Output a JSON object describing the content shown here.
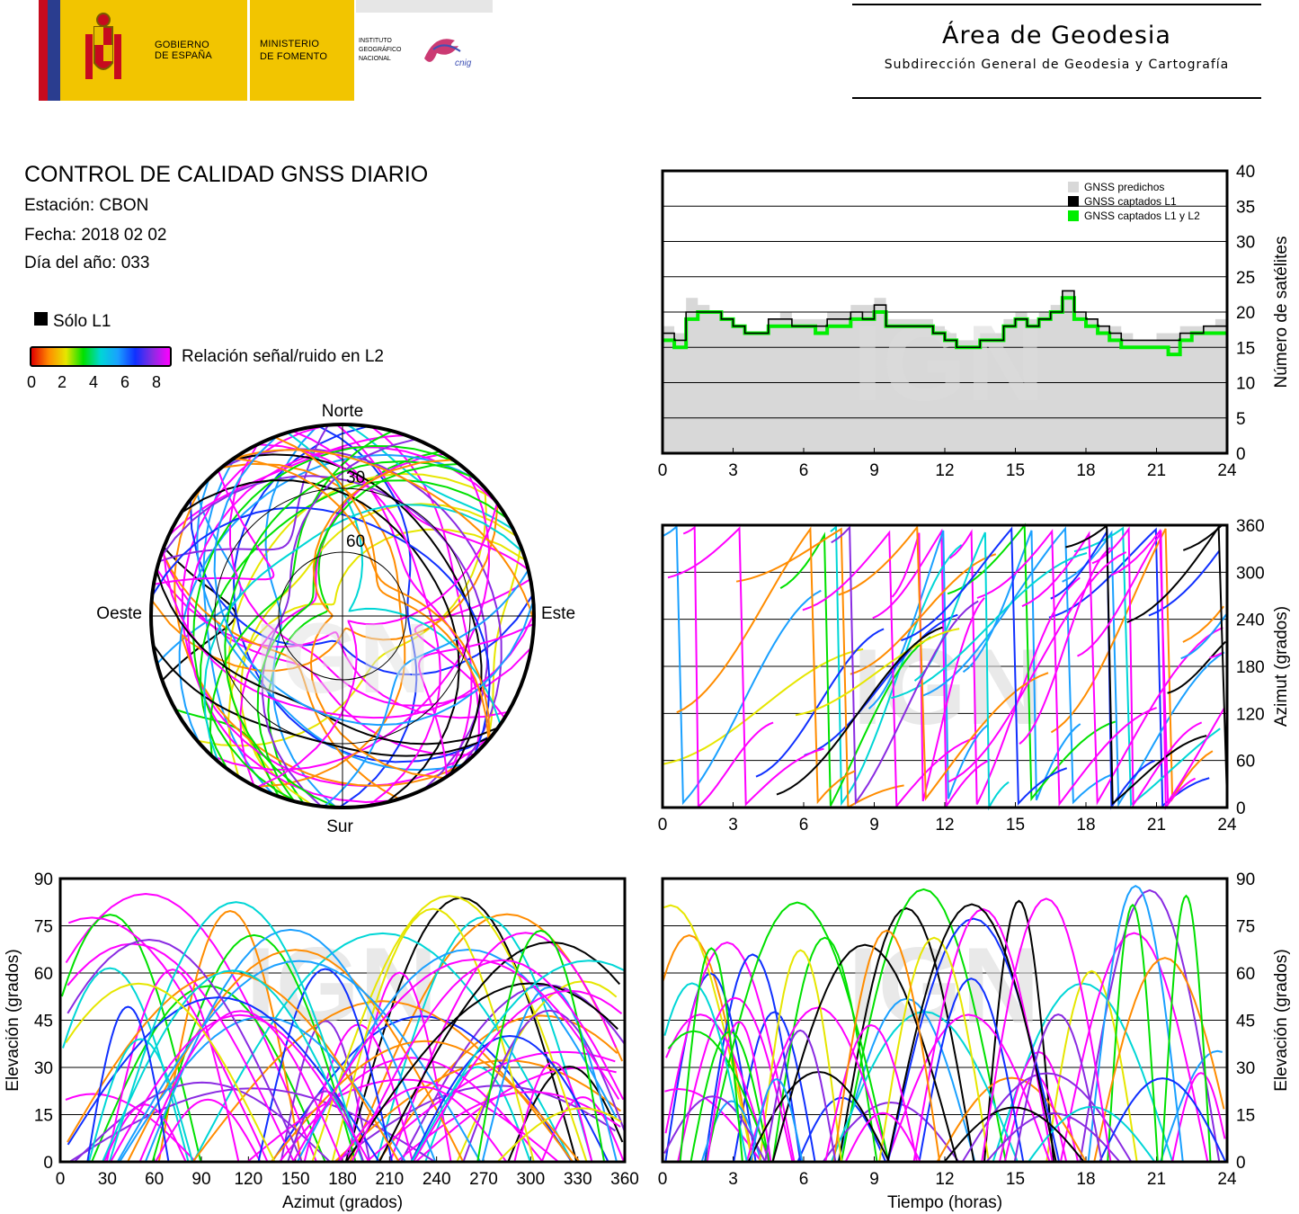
{
  "header": {
    "gov_line1": "GOBIERNO",
    "gov_line2": "DE ESPAÑA",
    "min_line1": "MINISTERIO",
    "min_line2": "DE FOMENTO",
    "ign_line1": "INSTITUTO",
    "ign_line2": "GEOGRÁFICO",
    "ign_line3": "NACIONAL",
    "cnig": "cnig",
    "area_title": "Área de Geodesia",
    "area_subtitle": "Subdirección General de Geodesia y Cartografía"
  },
  "info": {
    "title": "CONTROL DE CALIDAD GNSS DIARIO",
    "station": "Estación: CBON",
    "date": "Fecha: 2018 02 02",
    "doy": "Día del año: 033",
    "legend_l1": "Sólo L1",
    "legend_snr": "Relación señal/ruido en L2",
    "snr_ticks": [
      "0",
      "2",
      "4",
      "6",
      "8"
    ]
  },
  "colors": {
    "snr_scale": [
      "#e00000",
      "#ff8c00",
      "#e6e600",
      "#00e000",
      "#00d6d6",
      "#1aa0ff",
      "#1030ff",
      "#8a2be2",
      "#ff00ff"
    ],
    "predicted": "#d8d8d8",
    "l1": "#000000",
    "l1l2": "#00ee00"
  },
  "watermark": "IGN",
  "skyplot": {
    "north": "Norte",
    "south": "Sur",
    "east": "Este",
    "west": "Oeste",
    "ring_labels": [
      "30",
      "60"
    ]
  },
  "chart_data": [
    {
      "type": "line",
      "name": "satellite-count",
      "legend": [
        "GNSS predichos",
        "GNSS captados L1",
        "GNSS captados L1 y L2"
      ],
      "legend_placement": "top-right",
      "ylabel": "Número de satélites",
      "xlim": [
        0,
        24
      ],
      "ylim": [
        0,
        40
      ],
      "x_ticks": [
        "0",
        "3",
        "6",
        "9",
        "12",
        "15",
        "18",
        "21",
        "24"
      ],
      "y_ticks": [
        "0",
        "5",
        "10",
        "15",
        "20",
        "25",
        "30",
        "35",
        "40"
      ],
      "grid": true,
      "x": [
        0,
        0.5,
        1,
        1.5,
        2,
        2.5,
        3,
        3.5,
        4,
        4.5,
        5,
        5.5,
        6,
        6.5,
        7,
        7.5,
        8,
        8.5,
        9,
        9.5,
        10,
        10.5,
        11,
        11.5,
        12,
        12.5,
        13,
        13.5,
        14,
        14.5,
        15,
        15.5,
        16,
        16.5,
        17,
        17.5,
        18,
        18.5,
        19,
        19.5,
        20,
        20.5,
        21,
        21.5,
        22,
        22.5,
        23,
        23.5,
        24
      ],
      "series": [
        {
          "name": "GNSS predichos",
          "values": [
            18,
            17,
            22,
            21,
            20,
            19,
            18,
            17,
            17,
            19,
            20,
            19,
            19,
            19,
            20,
            20,
            21,
            21,
            22,
            19,
            19,
            19,
            19,
            18,
            17,
            16,
            16,
            17,
            17,
            19,
            20,
            19,
            20,
            21,
            23,
            20,
            19,
            18,
            18,
            17,
            16,
            16,
            17,
            17,
            18,
            18,
            18,
            19,
            18
          ]
        },
        {
          "name": "GNSS captados L1",
          "values": [
            17,
            16,
            20,
            20,
            20,
            19,
            18,
            17,
            17,
            19,
            19,
            18,
            18,
            18,
            19,
            19,
            20,
            19,
            21,
            18,
            18,
            18,
            18,
            17,
            16,
            15,
            15,
            16,
            16,
            18,
            19,
            18,
            19,
            20,
            23,
            20,
            19,
            18,
            17,
            16,
            16,
            16,
            16,
            16,
            17,
            17,
            18,
            18,
            18
          ]
        },
        {
          "name": "GNSS captados L1 y L2",
          "values": [
            16,
            15,
            19,
            20,
            20,
            19,
            18,
            17,
            17,
            18,
            18,
            18,
            18,
            17,
            18,
            18,
            19,
            19,
            20,
            18,
            18,
            18,
            18,
            17,
            16,
            15,
            15,
            16,
            16,
            18,
            19,
            18,
            19,
            20,
            22,
            19,
            18,
            17,
            16,
            15,
            15,
            15,
            15,
            14,
            16,
            17,
            17,
            17,
            17
          ]
        }
      ]
    },
    {
      "type": "scatter",
      "name": "azimuth-vs-time",
      "ylabel": "Azimut (grados)",
      "xlim": [
        0,
        24
      ],
      "ylim": [
        0,
        360
      ],
      "x_ticks": [
        "0",
        "3",
        "6",
        "9",
        "12",
        "15",
        "18",
        "21",
        "24"
      ],
      "y_ticks": [
        "0",
        "60",
        "120",
        "180",
        "240",
        "300",
        "360"
      ],
      "grid": true
    },
    {
      "type": "scatter",
      "name": "elevation-vs-azimuth",
      "xlabel": "Azimut (grados)",
      "ylabel": "Elevación (grados)",
      "xlim": [
        0,
        360
      ],
      "ylim": [
        0,
        90
      ],
      "x_ticks": [
        "0",
        "30",
        "60",
        "90",
        "120",
        "150",
        "180",
        "210",
        "240",
        "270",
        "300",
        "330",
        "360"
      ],
      "y_ticks": [
        "0",
        "15",
        "30",
        "45",
        "60",
        "75",
        "90"
      ],
      "grid": true
    },
    {
      "type": "scatter",
      "name": "elevation-vs-time",
      "xlabel": "Tiempo (horas)",
      "ylabel": "Elevación (grados)",
      "xlim": [
        0,
        24
      ],
      "ylim": [
        0,
        90
      ],
      "x_ticks": [
        "0",
        "3",
        "6",
        "9",
        "12",
        "15",
        "18",
        "21",
        "24"
      ],
      "y_ticks": [
        "0",
        "15",
        "30",
        "45",
        "60",
        "75",
        "90"
      ],
      "grid": true
    }
  ]
}
